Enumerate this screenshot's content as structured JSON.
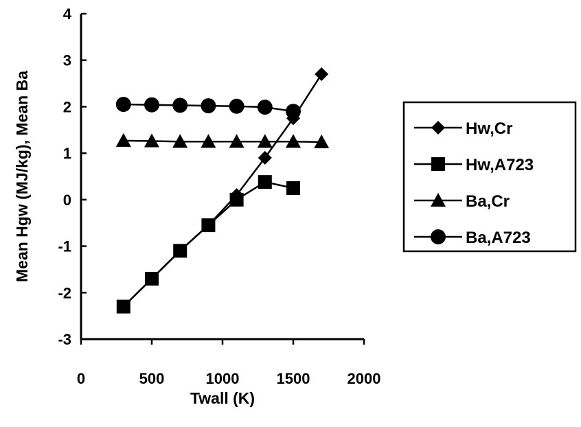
{
  "chart_data": {
    "type": "line",
    "title": "",
    "xlabel": "Twall (K)",
    "ylabel": "Mean Hgw (MJ/kg), Mean Ba",
    "xlim": [
      0,
      2000
    ],
    "ylim": [
      -3,
      4
    ],
    "x_ticks": [
      0,
      500,
      1000,
      1500,
      2000
    ],
    "y_ticks": [
      -3,
      -2,
      -1,
      0,
      1,
      2,
      3,
      4
    ],
    "grid": false,
    "legend_position": "right",
    "series": [
      {
        "name": "Hw,Cr",
        "marker": "diamond",
        "x": [
          300,
          500,
          700,
          900,
          1100,
          1300,
          1500,
          1700
        ],
        "y": [
          -2.3,
          -1.7,
          -1.1,
          -0.55,
          0.1,
          0.9,
          1.75,
          2.7
        ]
      },
      {
        "name": "Hw,A723",
        "marker": "square",
        "x": [
          300,
          500,
          700,
          900,
          1100,
          1300,
          1500
        ],
        "y": [
          -2.3,
          -1.7,
          -1.1,
          -0.55,
          0.0,
          0.38,
          0.25
        ]
      },
      {
        "name": "Ba,Cr",
        "marker": "triangle",
        "x": [
          300,
          500,
          700,
          900,
          1100,
          1300,
          1500,
          1700
        ],
        "y": [
          1.27,
          1.26,
          1.25,
          1.25,
          1.25,
          1.25,
          1.25,
          1.24
        ]
      },
      {
        "name": "Ba,A723",
        "marker": "circle",
        "x": [
          300,
          500,
          700,
          900,
          1100,
          1300,
          1500
        ],
        "y": [
          2.05,
          2.04,
          2.03,
          2.02,
          2.01,
          1.99,
          1.9
        ]
      }
    ]
  }
}
